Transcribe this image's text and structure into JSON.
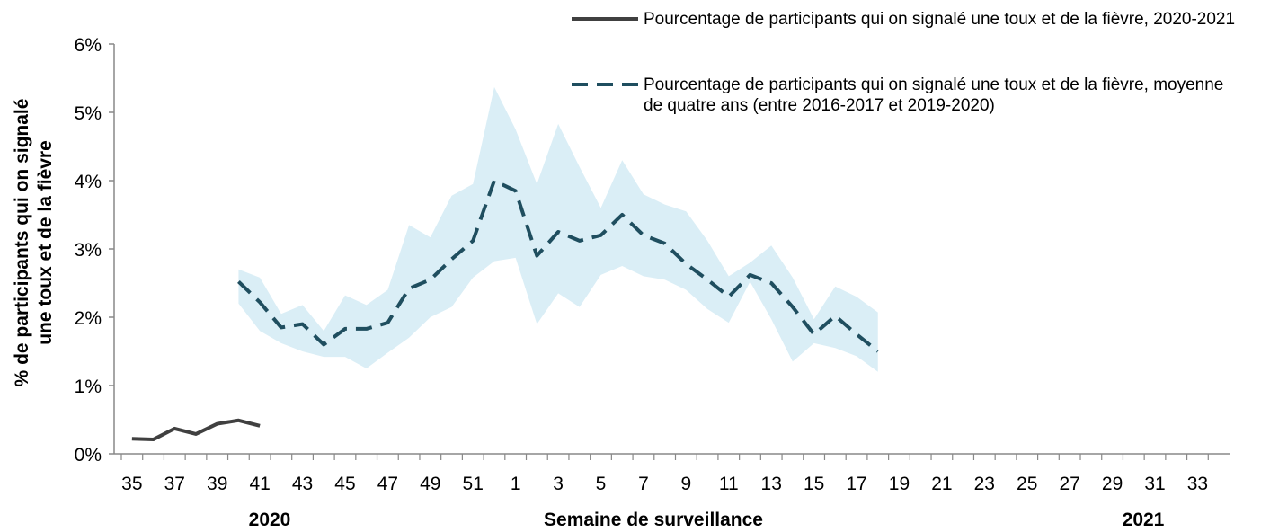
{
  "chart_data": {
    "type": "line",
    "y_label": [
      "% de participants qui on signalé",
      "une toux et de la fièvre"
    ],
    "x_label": "Semaine de surveillance",
    "x_group_labels": [
      "2020",
      "2021"
    ],
    "categories": [
      "35",
      null,
      "37",
      null,
      "39",
      null,
      "41",
      null,
      "43",
      null,
      "45",
      null,
      "47",
      null,
      "49",
      null,
      "51",
      null,
      "1",
      null,
      "3",
      null,
      "5",
      null,
      "7",
      null,
      "9",
      null,
      "11",
      null,
      "13",
      null,
      "15",
      null,
      "17",
      null,
      "19",
      null,
      "21",
      null,
      "23",
      null,
      "25",
      null,
      "27",
      null,
      "29",
      null,
      "31",
      null,
      "33",
      null
    ],
    "ylim": [
      0,
      6
    ],
    "yticks": [
      {
        "value": 0,
        "label": "0%"
      },
      {
        "value": 1,
        "label": "1%"
      },
      {
        "value": 2,
        "label": "2%"
      },
      {
        "value": 3,
        "label": "3%"
      },
      {
        "value": 4,
        "label": "4%"
      },
      {
        "value": 5,
        "label": "5%"
      },
      {
        "value": 6,
        "label": "6%"
      }
    ],
    "series": [
      {
        "name": "Pourcentage de participants qui on signalé une toux et de la fièvre, 2020-2021",
        "color": "#404040",
        "dashed": false,
        "values": [
          0.22,
          0.21,
          0.37,
          0.29,
          0.44,
          0.49,
          0.41,
          null,
          null,
          null,
          null,
          null,
          null,
          null,
          null,
          null,
          null,
          null,
          null,
          null,
          null,
          null,
          null,
          null,
          null,
          null,
          null,
          null,
          null,
          null,
          null,
          null,
          null,
          null,
          null,
          null,
          null,
          null,
          null,
          null,
          null,
          null,
          null,
          null,
          null,
          null,
          null,
          null,
          null,
          null,
          null,
          null
        ]
      },
      {
        "name": "Pourcentage de participants qui on signalé une toux et de la fièvre, moyenne de quatre ans (entre 2016-2017 et 2019-2020)",
        "color": "#1f4e5f",
        "dashed": true,
        "values": [
          null,
          null,
          null,
          null,
          null,
          2.52,
          2.22,
          1.85,
          1.9,
          1.6,
          1.83,
          1.83,
          1.92,
          2.42,
          2.55,
          2.85,
          3.12,
          4.0,
          3.85,
          2.9,
          3.25,
          3.12,
          3.2,
          3.5,
          3.2,
          3.08,
          2.78,
          2.55,
          2.3,
          2.62,
          2.5,
          2.15,
          1.75,
          2.02,
          1.75,
          1.5,
          null,
          null,
          null,
          null,
          null,
          null,
          null,
          null,
          null,
          null,
          null,
          null,
          null,
          null,
          null,
          null
        ]
      }
    ],
    "band": {
      "color": "#daeef6",
      "lower": [
        null,
        null,
        null,
        null,
        null,
        2.2,
        1.8,
        1.62,
        1.5,
        1.42,
        1.42,
        1.25,
        1.48,
        1.7,
        2.0,
        2.15,
        2.58,
        2.82,
        2.87,
        1.9,
        2.35,
        2.15,
        2.62,
        2.75,
        2.6,
        2.55,
        2.4,
        2.12,
        1.92,
        2.52,
        1.97,
        1.35,
        1.62,
        1.55,
        1.43,
        1.2,
        null,
        null,
        null,
        null,
        null,
        null,
        null,
        null,
        null,
        null,
        null,
        null,
        null,
        null,
        null,
        null
      ],
      "upper": [
        null,
        null,
        null,
        null,
        null,
        2.7,
        2.58,
        2.05,
        2.18,
        1.8,
        2.32,
        2.18,
        2.4,
        3.35,
        3.17,
        3.78,
        3.95,
        5.37,
        4.75,
        3.95,
        4.83,
        4.2,
        3.6,
        4.3,
        3.8,
        3.65,
        3.55,
        3.12,
        2.6,
        2.8,
        3.05,
        2.58,
        1.97,
        2.45,
        2.3,
        2.07,
        null,
        null,
        null,
        null,
        null,
        null,
        null,
        null,
        null,
        null,
        null,
        null,
        null,
        null,
        null,
        null
      ]
    }
  }
}
